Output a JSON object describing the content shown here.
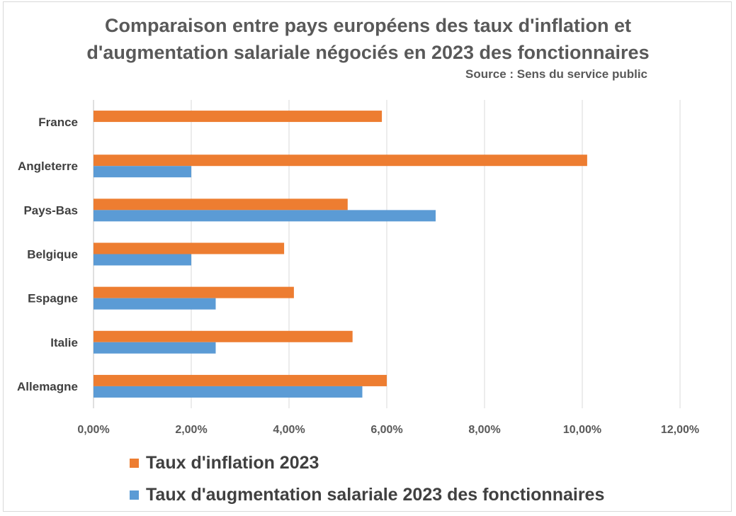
{
  "chart_data": {
    "type": "bar",
    "orientation": "horizontal",
    "title_line1": "Comparaison entre pays européens des taux d'inflation et",
    "title_line2": "d'augmentation salariale négociés en 2023 des fonctionnaires",
    "source": "Source : Sens du service public",
    "categories": [
      "France",
      "Angleterre",
      "Pays-Bas",
      "Belgique",
      "Espagne",
      "Italie",
      "Allemagne"
    ],
    "series": [
      {
        "name": "Taux d'inflation 2023",
        "color": "#ED7D31",
        "values": [
          5.9,
          10.1,
          5.2,
          3.9,
          4.1,
          5.3,
          6.0
        ]
      },
      {
        "name": "Taux d'augmentation salariale 2023 des fonctionnaires",
        "color": "#5B9BD5",
        "values": [
          null,
          2.0,
          7.0,
          2.0,
          2.5,
          2.5,
          5.5
        ]
      }
    ],
    "xlim": [
      0,
      12
    ],
    "xticks": [
      "0,00%",
      "2,00%",
      "4,00%",
      "6,00%",
      "8,00%",
      "10,00%",
      "12,00%"
    ],
    "grid": true,
    "legend_position": "bottom"
  }
}
